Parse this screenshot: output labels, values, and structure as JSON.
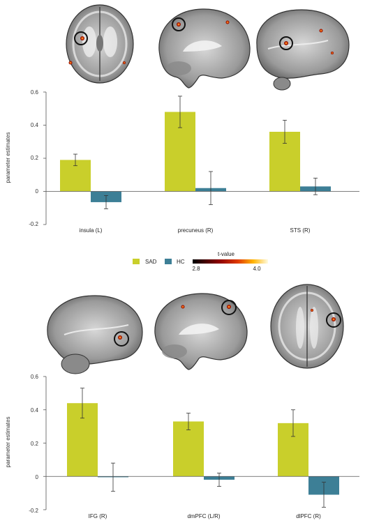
{
  "colors": {
    "SAD": "#c9cf2b",
    "HC": "#3d7f96",
    "axis": "#555555",
    "error": "#333333"
  },
  "legend": {
    "sad_label": "SAD",
    "hc_label": "HC",
    "tvalue_title": "t-value",
    "tvalue_min": "2.8",
    "tvalue_max": "4.0"
  },
  "brain_icons": [
    "brain-axial-slice-icon",
    "brain-sagittal-slice-icon",
    "brain-lateral-view-icon"
  ],
  "chart_data": [
    {
      "type": "bar",
      "ylabel": "parameter estimates",
      "ylim": [
        -0.2,
        0.6
      ],
      "yticks": [
        "0.6",
        "0.4",
        "0.2",
        "0",
        "-0.2"
      ],
      "categories": [
        "insula (L)",
        "precuneus (R)",
        "STS (R)"
      ],
      "series": [
        {
          "name": "SAD",
          "values": [
            0.19,
            0.48,
            0.36
          ],
          "errors": [
            0.035,
            0.095,
            0.07
          ]
        },
        {
          "name": "HC",
          "values": [
            -0.065,
            0.02,
            0.03
          ],
          "errors": [
            0.04,
            0.1,
            0.05
          ]
        }
      ]
    },
    {
      "type": "bar",
      "ylabel": "parameter estimates",
      "ylim": [
        -0.2,
        0.6
      ],
      "yticks": [
        "0.6",
        "0.4",
        "0.2",
        "0",
        "-0.2"
      ],
      "categories": [
        "IFG (R)",
        "dmPFC (L/R)",
        "dlPFC (R)"
      ],
      "series": [
        {
          "name": "SAD",
          "values": [
            0.44,
            0.33,
            0.32
          ],
          "errors": [
            0.09,
            0.05,
            0.08
          ]
        },
        {
          "name": "HC",
          "values": [
            -0.005,
            -0.02,
            -0.11
          ],
          "errors": [
            0.085,
            0.04,
            0.075
          ]
        }
      ]
    }
  ]
}
